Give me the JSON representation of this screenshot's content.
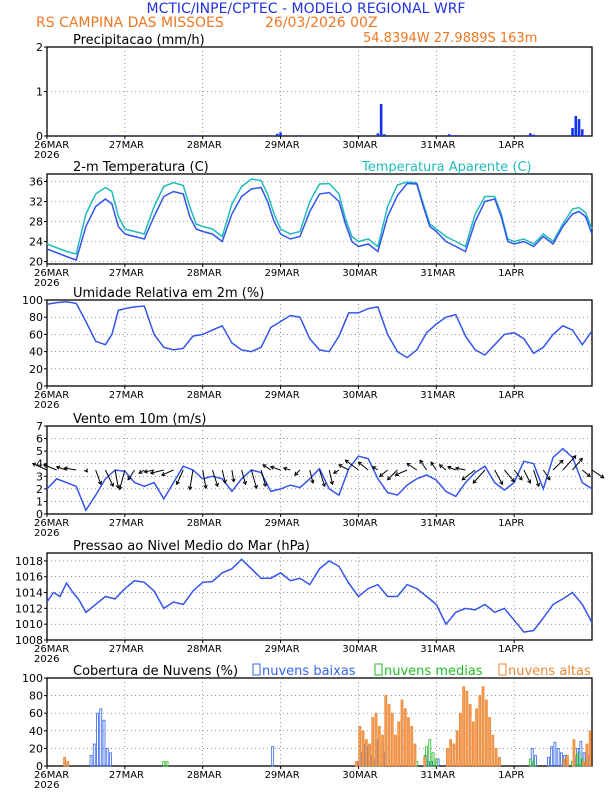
{
  "header": {
    "title": "MCTIC/INPE/CPTEC - MODELO REGIONAL WRF",
    "location": "RS CAMPINA DAS MISSOES",
    "run": "26/03/2026 00Z",
    "coords": "54.8394W 27.9889S 163m"
  },
  "colors": {
    "title": "#2233dd",
    "location": "#ee7722",
    "blue_line": "#3355ee",
    "cyan_line": "#22bbbb",
    "low_clouds": "#3366ee",
    "mid_clouds": "#22bb22",
    "high_clouds": "#ee8833",
    "vector": "#000000"
  },
  "x_axis": {
    "tick_labels": [
      "26MAR",
      "27MAR",
      "28MAR",
      "29MAR",
      "30MAR",
      "31MAR",
      "1APR"
    ],
    "year_label": "2026",
    "range_hours": [
      0,
      168
    ]
  },
  "chart_data": [
    {
      "id": "precip",
      "type": "bar",
      "title": "Precipitacao (mm/h)",
      "ylim": [
        0,
        2
      ],
      "yticks": [
        "0",
        "1",
        "2"
      ],
      "x_hours": [
        21,
        45,
        67,
        71,
        72,
        78,
        102,
        103,
        104,
        124,
        126,
        149,
        150,
        162,
        163,
        164,
        165
      ],
      "values": [
        0.02,
        0.02,
        0.02,
        0.05,
        0.08,
        0.02,
        0.06,
        0.72,
        0.04,
        0.04,
        0.02,
        0.06,
        0.03,
        0.18,
        0.45,
        0.38,
        0.15
      ]
    },
    {
      "id": "temp",
      "type": "line",
      "title": "2-m Temperatura (C)",
      "legend_right": "Temperatura Aparente (C)",
      "ylim": [
        19.5,
        37.5
      ],
      "yticks": [
        "20",
        "24",
        "28",
        "32",
        "36"
      ],
      "series": [
        {
          "name": "Temperatura 2m",
          "x": [
            0,
            6,
            9,
            12,
            15,
            18,
            20,
            22,
            24,
            27,
            30,
            33,
            36,
            39,
            42,
            44,
            46,
            48,
            51,
            54,
            57,
            60,
            63,
            66,
            68,
            70,
            72,
            75,
            78,
            81,
            84,
            87,
            90,
            92,
            94,
            96,
            99,
            102,
            105,
            108,
            111,
            114,
            116,
            118,
            120,
            123,
            126,
            129,
            132,
            135,
            138,
            140,
            142,
            144,
            147,
            150,
            153,
            156,
            159,
            162,
            164,
            166,
            168
          ],
          "values": [
            22.5,
            21,
            20.3,
            27,
            31,
            32.5,
            31.5,
            27,
            25.5,
            25,
            24.5,
            29,
            33,
            34,
            33.5,
            29,
            26.5,
            26,
            25.5,
            24,
            29.5,
            33,
            34.5,
            34.8,
            32,
            28,
            25.5,
            24.5,
            25,
            30,
            33.5,
            33.8,
            32,
            27.5,
            24,
            23,
            23.5,
            22,
            29,
            33.2,
            35.6,
            35.5,
            31,
            27,
            26,
            24,
            23,
            22,
            28,
            32,
            32.5,
            29,
            24,
            23.5,
            24,
            23,
            25,
            23.5,
            27,
            29.5,
            30,
            29,
            25.5
          ]
        },
        {
          "name": "Temperatura Aparente",
          "x": [
            0,
            6,
            9,
            12,
            15,
            18,
            20,
            22,
            24,
            27,
            30,
            33,
            36,
            39,
            42,
            44,
            46,
            48,
            51,
            54,
            57,
            60,
            63,
            66,
            68,
            70,
            72,
            75,
            78,
            81,
            84,
            87,
            90,
            92,
            94,
            96,
            99,
            102,
            105,
            108,
            111,
            114,
            116,
            118,
            120,
            123,
            126,
            129,
            132,
            135,
            138,
            140,
            142,
            144,
            147,
            150,
            153,
            156,
            159,
            162,
            164,
            166,
            168
          ],
          "values": [
            23.5,
            22,
            21.5,
            29.5,
            33.5,
            34.8,
            34,
            29,
            26.5,
            26,
            25.5,
            31,
            35,
            35.8,
            35.2,
            31,
            27.5,
            27,
            26.5,
            25,
            31.5,
            35,
            36.5,
            36.2,
            33.5,
            29.5,
            26.5,
            25.5,
            26,
            32,
            35.5,
            35.6,
            33.5,
            28.5,
            25,
            24,
            24.5,
            23,
            31,
            35.3,
            35.9,
            35.7,
            31.5,
            27.5,
            26.5,
            25,
            24,
            23,
            29.5,
            33,
            33,
            29.5,
            24.5,
            24,
            24.5,
            23.5,
            25.5,
            24,
            27.5,
            30.5,
            30.8,
            29.8,
            26.5
          ]
        }
      ]
    },
    {
      "id": "rh",
      "type": "line",
      "title": "Umidade Relativa em 2m (%)",
      "ylim": [
        0,
        100
      ],
      "yticks": [
        "0",
        "20",
        "40",
        "60",
        "80",
        "100"
      ],
      "series": [
        {
          "name": "Umidade Relativa",
          "x": [
            0,
            3,
            6,
            9,
            12,
            15,
            18,
            20,
            22,
            24,
            27,
            30,
            33,
            36,
            39,
            42,
            45,
            48,
            51,
            54,
            57,
            60,
            63,
            66,
            69,
            72,
            75,
            78,
            81,
            84,
            87,
            90,
            93,
            96,
            99,
            102,
            105,
            108,
            111,
            114,
            117,
            120,
            123,
            126,
            129,
            132,
            135,
            138,
            141,
            144,
            147,
            150,
            153,
            156,
            159,
            162,
            165,
            168
          ],
          "values": [
            95,
            97,
            98,
            96,
            75,
            52,
            48,
            60,
            88,
            90,
            92,
            93,
            60,
            45,
            42,
            44,
            58,
            60,
            65,
            70,
            50,
            42,
            40,
            45,
            68,
            75,
            82,
            80,
            55,
            42,
            40,
            58,
            85,
            85,
            90,
            92,
            60,
            40,
            33,
            42,
            62,
            72,
            80,
            83,
            58,
            42,
            36,
            48,
            60,
            62,
            55,
            38,
            45,
            60,
            70,
            65,
            48,
            64
          ]
        }
      ]
    },
    {
      "id": "wind",
      "type": "line",
      "title": "Vento em 10m (m/s)",
      "ylim": [
        0,
        7
      ],
      "yticks": [
        "0",
        "1",
        "2",
        "3",
        "4",
        "5",
        "6",
        "7"
      ],
      "vector_baseline": 3.5,
      "series": [
        {
          "name": "Velocidade do vento",
          "x": [
            0,
            3,
            6,
            9,
            12,
            15,
            18,
            21,
            24,
            27,
            30,
            33,
            36,
            39,
            42,
            45,
            48,
            51,
            54,
            57,
            60,
            63,
            66,
            69,
            72,
            75,
            78,
            81,
            84,
            87,
            90,
            93,
            96,
            99,
            102,
            105,
            108,
            111,
            114,
            117,
            120,
            123,
            126,
            129,
            132,
            135,
            138,
            141,
            144,
            147,
            150,
            153,
            156,
            159,
            162,
            165,
            168
          ],
          "values": [
            2,
            2.8,
            2.5,
            2.2,
            0.3,
            1.5,
            2.8,
            3.5,
            3.4,
            2.5,
            2.2,
            2.5,
            1.2,
            2.5,
            3.8,
            3.5,
            2.8,
            3,
            2.8,
            1.8,
            2.8,
            3.5,
            3.3,
            1.8,
            2,
            2.3,
            2.1,
            2.8,
            3.6,
            2,
            1.5,
            3.6,
            4.6,
            4.4,
            2.8,
            1.7,
            1.5,
            2.3,
            2.8,
            3.1,
            2.7,
            1.8,
            1.4,
            2.5,
            3.3,
            3.8,
            2.5,
            1.9,
            2.5,
            4.2,
            4,
            2,
            4.5,
            5.2,
            4.5,
            2.5,
            2
          ]
        }
      ],
      "vectors": {
        "x": [
          0,
          3,
          6,
          9,
          12,
          15,
          18,
          21,
          24,
          27,
          30,
          33,
          36,
          39,
          42,
          45,
          48,
          51,
          54,
          57,
          60,
          63,
          66,
          69,
          72,
          75,
          78,
          81,
          84,
          87,
          90,
          93,
          96,
          99,
          102,
          105,
          108,
          111,
          114,
          117,
          120,
          123,
          126,
          129,
          132,
          135,
          138,
          141,
          144,
          147,
          150,
          153,
          156,
          159,
          162,
          165,
          168
        ],
        "u": [
          -2.2,
          -2.0,
          -1.5,
          -1.8,
          0.2,
          0.8,
          1.2,
          0.5,
          -0.8,
          -1.0,
          -0.8,
          -1.5,
          -2.0,
          -1.8,
          -1.0,
          -0.5,
          0.5,
          0.8,
          0.5,
          0.3,
          0.6,
          0.8,
          0.7,
          -1.2,
          -1.5,
          -1.0,
          -0.8,
          0.5,
          0.8,
          0.5,
          -0.8,
          -1.5,
          -2.0,
          -1.5,
          -0.8,
          -1.2,
          -1.5,
          -1.8,
          -1.5,
          -1.0,
          -0.8,
          -1.0,
          -1.2,
          -1.5,
          -2.0,
          -1.8,
          1.2,
          1.5,
          1.2,
          1.0,
          0.8,
          1.0,
          1.5,
          2.0,
          1.5,
          1.2,
          1.8
        ],
        "v": [
          1.0,
          0.8,
          0.5,
          0.3,
          -0.3,
          -2.2,
          -2.5,
          -2.8,
          -3.0,
          -1.5,
          -0.5,
          -0.3,
          -0.5,
          -0.8,
          -2.2,
          -3.0,
          -2.8,
          -2.5,
          -2.0,
          -1.8,
          -2.2,
          -2.8,
          -2.5,
          0.8,
          0.5,
          0.3,
          -0.8,
          -2.0,
          -2.5,
          -2.2,
          -0.5,
          0.8,
          1.5,
          1.2,
          0.5,
          -1.0,
          -1.5,
          -0.8,
          1.0,
          1.5,
          1.2,
          0.8,
          0.5,
          0.3,
          -1.5,
          -2.0,
          -2.2,
          -1.8,
          -1.5,
          -2.0,
          -2.5,
          -1.5,
          1.5,
          2.2,
          1.8,
          -1.0,
          -1.2
        ]
      }
    },
    {
      "id": "pressure",
      "type": "line",
      "title": "Pressao ao Nivel Medio do Mar (hPa)",
      "ylim": [
        1008,
        1019
      ],
      "yticks": [
        "1008",
        "1010",
        "1012",
        "1014",
        "1016",
        "1018"
      ],
      "series": [
        {
          "name": "Pressao",
          "x": [
            0,
            2,
            4,
            6,
            8,
            10,
            12,
            15,
            18,
            21,
            24,
            27,
            30,
            33,
            36,
            39,
            42,
            45,
            48,
            51,
            54,
            57,
            60,
            63,
            66,
            69,
            72,
            75,
            78,
            81,
            84,
            87,
            90,
            93,
            96,
            99,
            102,
            105,
            108,
            111,
            114,
            117,
            120,
            123,
            126,
            129,
            132,
            135,
            138,
            141,
            144,
            147,
            150,
            153,
            156,
            159,
            162,
            165,
            168
          ],
          "values": [
            1012.8,
            1014,
            1013.5,
            1015.2,
            1014,
            1013,
            1011.5,
            1012.5,
            1013.5,
            1013.2,
            1014.5,
            1015.5,
            1015.3,
            1014.2,
            1012,
            1012.8,
            1012.5,
            1014.2,
            1015.3,
            1015.4,
            1016.5,
            1017,
            1018.2,
            1017,
            1015.8,
            1015.8,
            1016.5,
            1015.5,
            1015.8,
            1015,
            1017,
            1018,
            1017.3,
            1015.2,
            1013.5,
            1014.5,
            1015,
            1013.5,
            1013.5,
            1015,
            1014.5,
            1013.5,
            1012.5,
            1010,
            1011.5,
            1012,
            1011.8,
            1012.5,
            1011.5,
            1012,
            1010.5,
            1009,
            1009.2,
            1010.8,
            1012.5,
            1013.2,
            1014,
            1012.5,
            1010.2
          ]
        }
      ]
    },
    {
      "id": "clouds",
      "type": "bar",
      "title": "Cobertura de Nuvens (%)",
      "legend": [
        "nuvens baixas",
        "nuvens medias",
        "nuvens altas"
      ],
      "ylim": [
        0,
        100
      ],
      "yticks": [
        "0",
        "20",
        "40",
        "60",
        "80",
        "100"
      ],
      "series": [
        {
          "name": "nuvens baixas",
          "x": [
            14,
            15,
            16,
            17,
            18,
            19,
            20,
            70,
            96,
            97,
            98,
            99,
            100,
            101,
            102,
            104,
            117,
            118,
            119,
            121,
            150,
            151,
            155,
            156,
            157,
            158,
            159,
            160,
            163,
            164,
            165,
            166,
            167
          ],
          "values": [
            12,
            25,
            60,
            65,
            52,
            20,
            15,
            22,
            5,
            15,
            25,
            22,
            12,
            8,
            30,
            15,
            12,
            5,
            5,
            8,
            20,
            12,
            10,
            22,
            27,
            20,
            15,
            12,
            10,
            20,
            28,
            15,
            12
          ]
        },
        {
          "name": "nuvens medias",
          "x": [
            36,
            37,
            97,
            98,
            99,
            100,
            101,
            102,
            103,
            114,
            117,
            118,
            119,
            120,
            149,
            150,
            162,
            163,
            164,
            165,
            166
          ],
          "values": [
            5,
            5,
            8,
            12,
            15,
            22,
            25,
            20,
            12,
            5,
            22,
            30,
            15,
            8,
            8,
            5,
            5,
            12,
            15,
            8,
            5
          ]
        },
        {
          "name": "nuvens altas",
          "x": [
            5,
            6,
            95,
            96,
            97,
            98,
            99,
            100,
            101,
            102,
            103,
            104,
            105,
            106,
            107,
            108,
            109,
            110,
            111,
            112,
            113,
            116,
            123,
            124,
            125,
            126,
            127,
            128,
            129,
            130,
            131,
            132,
            133,
            134,
            135,
            136,
            137,
            138,
            139,
            159,
            160,
            162,
            165,
            166,
            167
          ],
          "values": [
            10,
            5,
            5,
            45,
            40,
            30,
            25,
            55,
            60,
            45,
            35,
            80,
            70,
            60,
            35,
            50,
            75,
            65,
            55,
            45,
            25,
            10,
            20,
            30,
            25,
            40,
            60,
            90,
            85,
            70,
            50,
            65,
            80,
            90,
            75,
            55,
            35,
            20,
            10,
            8,
            12,
            30,
            5,
            25,
            40
          ]
        }
      ]
    }
  ]
}
